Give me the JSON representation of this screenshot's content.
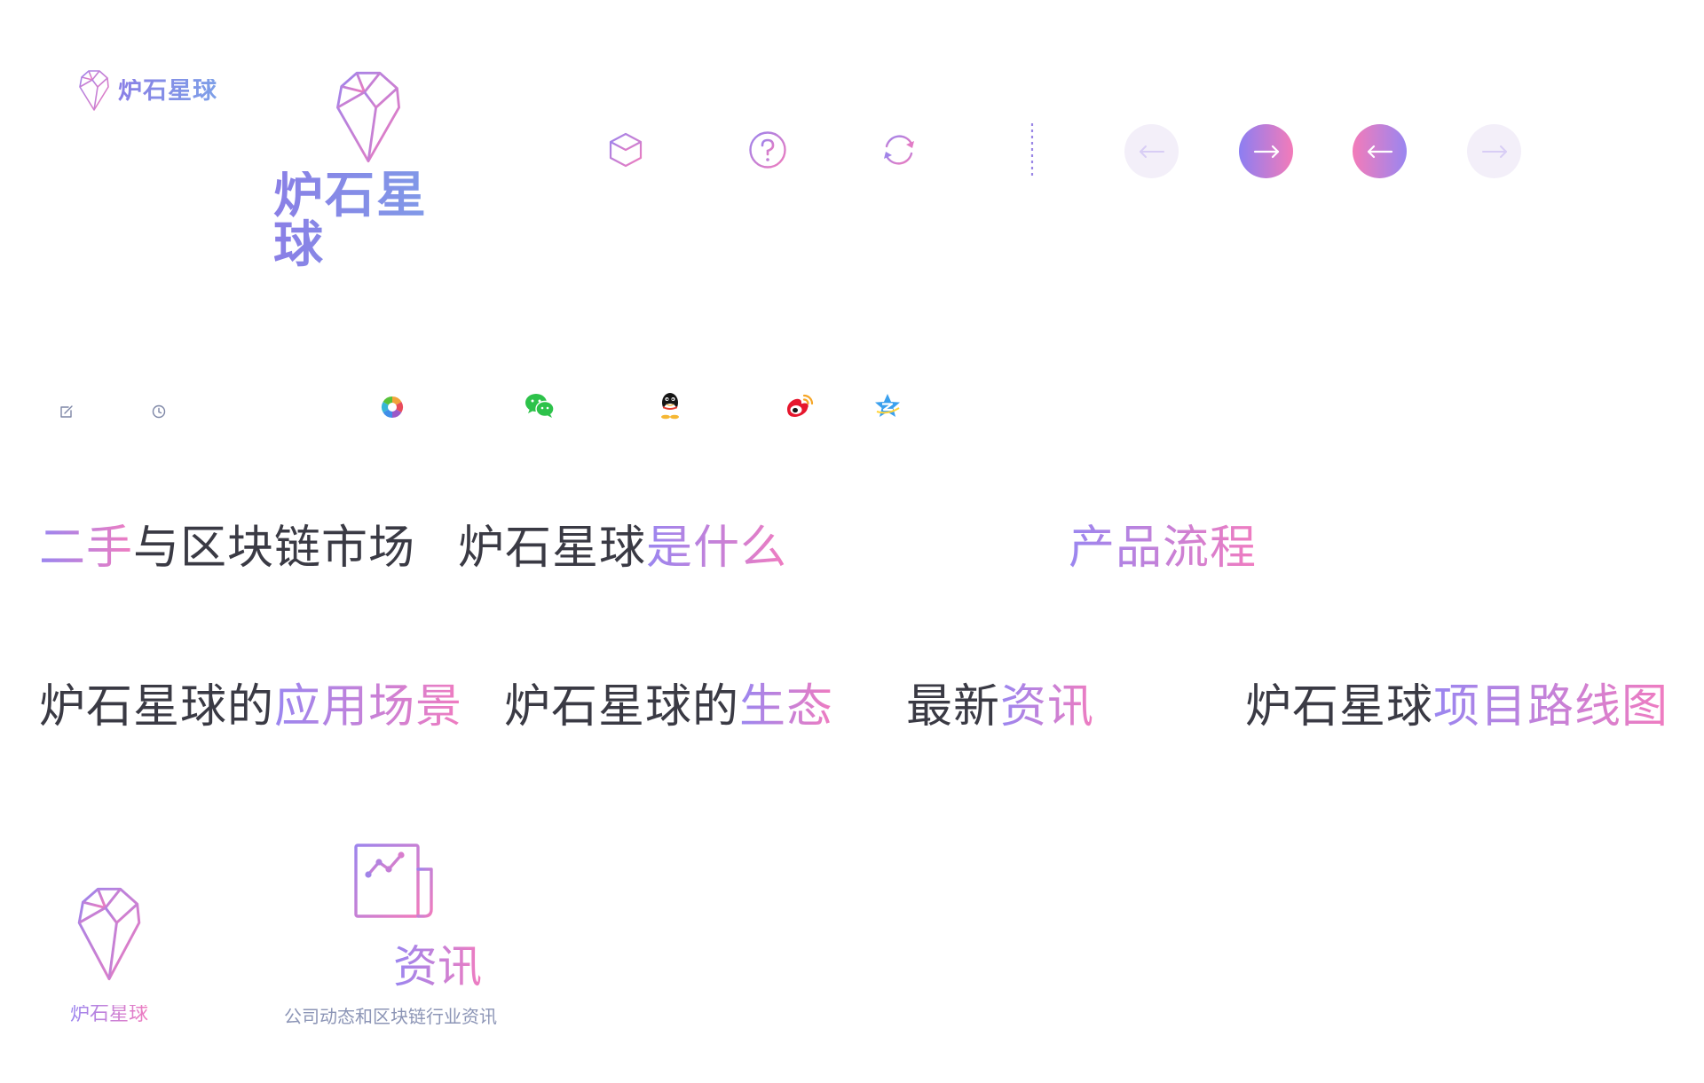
{
  "logo": {
    "wordmark": "炉石星球"
  },
  "icons": {
    "cube": "cube-icon",
    "help": "question-circle-icon",
    "refresh": "refresh-icon",
    "divider": "dotted-divider",
    "arrow_left": "arrow-left-icon",
    "arrow_right": "arrow-right-icon",
    "edit": "edit-icon",
    "clock": "clock-icon",
    "moments": "moments-icon",
    "wechat": "wechat-icon",
    "qq": "qq-icon",
    "weibo": "weibo-icon",
    "qzone": "qzone-icon",
    "news": "newspaper-chart-icon"
  },
  "headings": {
    "market": {
      "accent": "二手",
      "rest": "与区块链市场"
    },
    "what": {
      "dark": "炉石星球",
      "accent": "是什么"
    },
    "flow": {
      "accent": "产品流程"
    },
    "scenes": {
      "dark": "炉石星球的",
      "accent": "应用场景"
    },
    "eco": {
      "dark": "炉石星球的",
      "accent": "生态"
    },
    "news": {
      "dark": "最新",
      "accent": "资讯"
    },
    "roadmap": {
      "dark": "炉石星球",
      "accent": "项目路线图"
    }
  },
  "cards": {
    "brand_label": "炉石星球",
    "news_title": "资讯",
    "news_subtitle": "公司动态和区块链行业资讯"
  },
  "colors": {
    "gradient_start": "#9a86f0",
    "gradient_end": "#f07cc0",
    "dark_text": "#3a3a44",
    "light_circle": "#f3eff9"
  }
}
